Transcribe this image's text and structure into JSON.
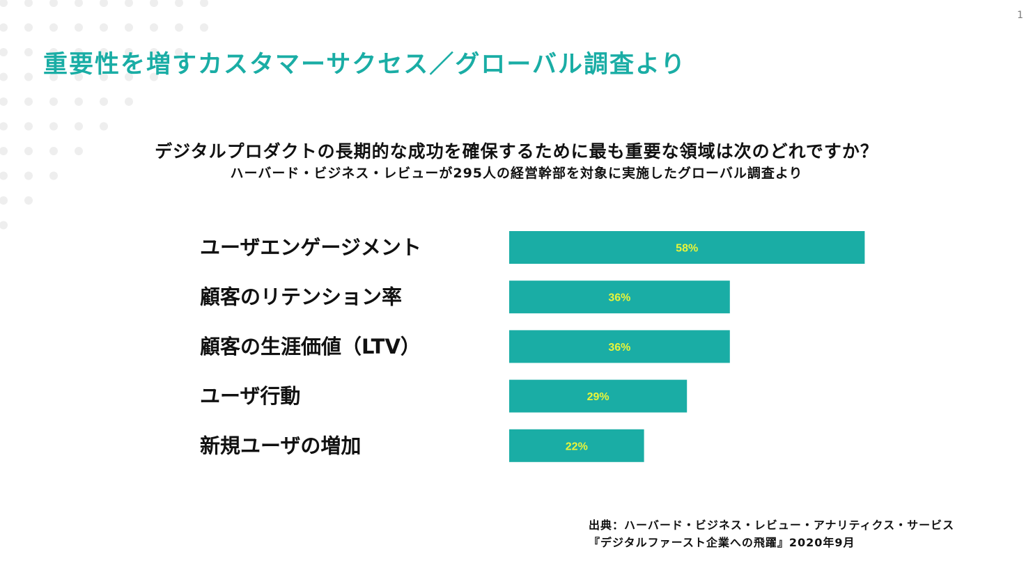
{
  "page_number": "1",
  "title": "重要性を増すカスタマーサクセス／グローバル調査より",
  "question": "デジタルプロダクトの長期的な成功を確保するために最も重要な領域は次のどれですか？",
  "subquestion": "ハーバード・ビジネス・レビューが295人の経営幹部を対象に実施したグローバル調査より",
  "colors": {
    "accent": "#1aada5",
    "bar": "#1aada5",
    "value_text": "#e9f53a",
    "dots": "#eeeeee"
  },
  "chart_data": {
    "type": "bar",
    "orientation": "horizontal",
    "categories": [
      "ユーザエンゲージメント",
      "顧客のリテンション率",
      "顧客の生涯価値（LTV）",
      "ユーザ行動",
      "新規ユーザの増加"
    ],
    "values": [
      58,
      36,
      36,
      29,
      22
    ],
    "value_labels": [
      "58%",
      "36%",
      "36%",
      "29%",
      "22%"
    ],
    "unit": "%",
    "title": "",
    "xlabel": "",
    "ylabel": "",
    "grid": false,
    "legend": "none"
  },
  "source": {
    "line1": "出典：ハーバード・ビジネス・レビュー・アナリティクス・サービス",
    "line2": "『デジタルファースト企業への飛躍』2020年9月"
  }
}
